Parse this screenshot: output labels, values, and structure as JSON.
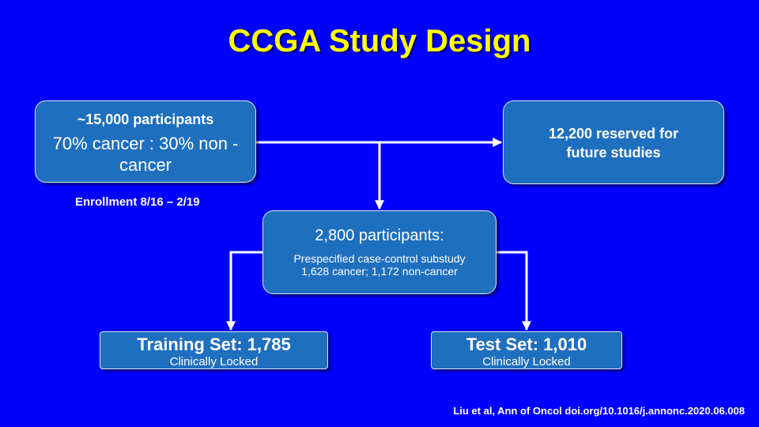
{
  "title": "CCGA Study Design",
  "colors": {
    "background": "#0000FF",
    "title": "#FFFF00",
    "box_fill": "#1F6FBF",
    "line": "#FFFFFF"
  },
  "participants_box": {
    "line1": "~15,000 participants",
    "line2": "70% cancer : 30% non -cancer"
  },
  "reserved_box": {
    "text": "12,200 reserved for future studies"
  },
  "enrollment": "Enrollment 8/16 – 2/19",
  "substudy_box": {
    "heading": "2,800 participants:",
    "line1": "Prespecified case-control substudy",
    "line2": "1,628 cancer; 1,172 non-cancer"
  },
  "training_box": {
    "heading": "Training Set: 1,785",
    "sub": "Clinically Locked"
  },
  "test_box": {
    "heading": "Test Set: 1,010",
    "sub": "Clinically Locked"
  },
  "citation": "Liu et al, Ann of Oncol  doi.org/10.1016/j.annonc.2020.06.008"
}
